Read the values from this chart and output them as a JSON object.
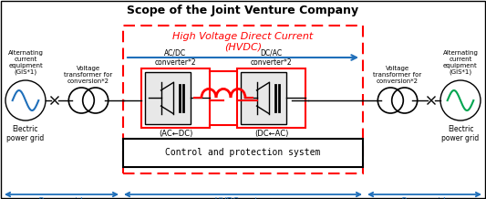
{
  "title": "Scope of the Joint Venture Company",
  "hvdc_label1": "High Voltage Direct Current",
  "hvdc_label2": "(HVDC)",
  "control_label": "Control and protection system",
  "bottom_labels": [
    "<Power grid>",
    "<HVDC system>",
    "<Power grid>"
  ],
  "ac_dc_top": "AC/DC\nconverter*2",
  "dc_ac_top": "DC/AC\nconverter*2",
  "ac_dc_bot": "(AC⇜DC)",
  "dc_ac_bot": "(DC⇜AC)",
  "volt_label": "Voltage\ntransformer for\nconversion*2",
  "alt_label": "Alternating\ncurrent\nequipment\n(GIS*1)",
  "elec_label": "Electric\npower grid",
  "bg_color": "#ffffff",
  "red": "#ff0000",
  "blue": "#1f6fba",
  "green": "#00a550",
  "black": "#000000",
  "figsize": [
    5.33,
    2.18
  ],
  "dpi": 100
}
